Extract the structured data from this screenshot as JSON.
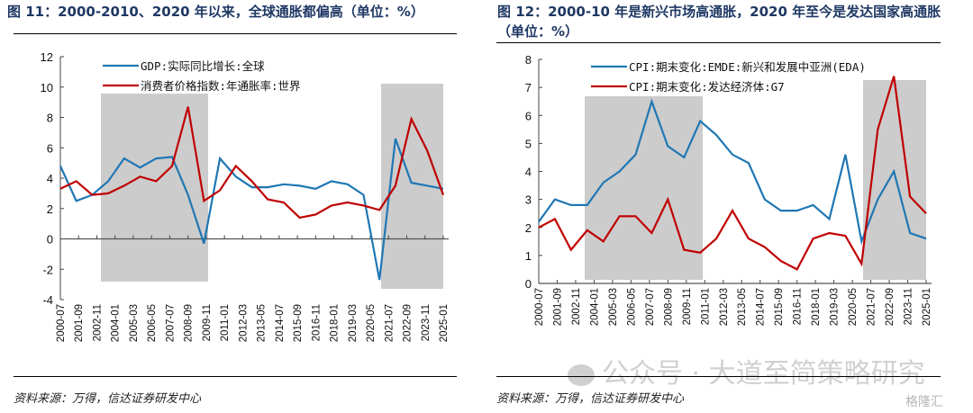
{
  "figure1": {
    "title": "图 11：2000-2010、2020 年以来，全球通胀都偏高（单位：%）",
    "source": "资料来源：万得，信达证券研发中心"
  },
  "figure2": {
    "title": "图  12：2000-10 年是新兴市场高通胀，2020 年至今是发达国家高通胀（单位：%）",
    "source": "资料来源：万得，信达证券研发中心"
  },
  "watermark": {
    "text": "公众号 · 大道至简策略研究",
    "icon": "wechat-icon",
    "logo": "格隆汇"
  },
  "colors": {
    "blue": "#1f77b4",
    "red": "#c00000",
    "shade": "#cccccc"
  },
  "chart_data": [
    {
      "type": "line",
      "title": "图 11：2000-2010、2020 年以来，全球通胀都偏高（单位：%）",
      "xlabel": "",
      "ylabel": "",
      "ylim": [
        -4,
        12
      ],
      "yticks": [
        "12",
        "10",
        "8",
        "6",
        "4",
        "2",
        "0",
        "-2",
        "-4"
      ],
      "ytick_values": [
        12,
        10,
        8,
        6,
        4,
        2,
        0,
        -2,
        -4
      ],
      "xtick_labels": [
        "2000-07",
        "2001-09",
        "2002-11",
        "2004-01",
        "2005-03",
        "2006-05",
        "2007-07",
        "2008-09",
        "2009-11",
        "2011-01",
        "2012-03",
        "2013-05",
        "2014-07",
        "2015-09",
        "2016-11",
        "2018-01",
        "2019-03",
        "2020-05",
        "2021-07",
        "2022-09",
        "2023-11",
        "2025-01"
      ],
      "x": [
        2000,
        2001,
        2002,
        2003,
        2004,
        2005,
        2006,
        2007,
        2008,
        2009,
        2010,
        2011,
        2012,
        2013,
        2014,
        2015,
        2016,
        2017,
        2018,
        2019,
        2020,
        2021,
        2022,
        2023,
        2024
      ],
      "series": [
        {
          "name": "GDP:实际同比增长:全球",
          "color": "#1f77b4",
          "values": [
            4.8,
            2.5,
            2.9,
            3.8,
            5.3,
            4.7,
            5.3,
            5.4,
            2.9,
            -0.3,
            5.3,
            4.1,
            3.4,
            3.4,
            3.6,
            3.5,
            3.3,
            3.8,
            3.6,
            2.9,
            -2.7,
            6.6,
            3.7,
            3.5,
            3.3
          ]
        },
        {
          "name": "消费者价格指数:年通胀率:世界",
          "color": "#c00000",
          "values": [
            3.3,
            3.8,
            2.9,
            3.0,
            3.5,
            4.1,
            3.8,
            4.8,
            8.7,
            2.5,
            3.2,
            4.8,
            3.8,
            2.6,
            2.4,
            1.4,
            1.6,
            2.2,
            2.4,
            2.2,
            1.9,
            3.5,
            7.9,
            5.8,
            2.9
          ]
        }
      ],
      "shaded_periods": [
        [
          "2003-01",
          "2009-12"
        ],
        [
          "2020-07",
          "2025-01"
        ]
      ],
      "legend": "top"
    },
    {
      "type": "line",
      "title": "图  12：2000-10 年是新兴市场高通胀，2020 年至今是发达国家高通胀（单位：%）",
      "xlabel": "",
      "ylabel": "",
      "ylim": [
        0,
        8
      ],
      "yticks": [
        "8",
        "7",
        "6",
        "5",
        "4",
        "3",
        "2",
        "1",
        "0"
      ],
      "ytick_values": [
        8,
        7,
        6,
        5,
        4,
        3,
        2,
        1,
        0
      ],
      "xtick_labels": [
        "2000-07",
        "2001-09",
        "2002-11",
        "2004-01",
        "2005-03",
        "2006-05",
        "2007-07",
        "2008-09",
        "2009-11",
        "2011-01",
        "2012-03",
        "2013-05",
        "2014-07",
        "2015-09",
        "2016-11",
        "2018-01",
        "2019-03",
        "2020-05",
        "2021-07",
        "2022-09",
        "2023-11",
        "2025-01"
      ],
      "x": [
        2000,
        2001,
        2002,
        2003,
        2004,
        2005,
        2006,
        2007,
        2008,
        2009,
        2010,
        2011,
        2012,
        2013,
        2014,
        2015,
        2016,
        2017,
        2018,
        2019,
        2020,
        2021,
        2022,
        2023,
        2024
      ],
      "series": [
        {
          "name": "CPI:期末变化:EMDE:新兴和发展中亚洲(EDA)",
          "color": "#1f77b4",
          "values": [
            2.2,
            3.0,
            2.8,
            2.8,
            3.6,
            4.0,
            4.6,
            6.5,
            4.9,
            4.5,
            5.8,
            5.3,
            4.6,
            4.3,
            3.0,
            2.6,
            2.6,
            2.8,
            2.3,
            4.6,
            1.5,
            3.0,
            4.0,
            1.8,
            1.6
          ]
        },
        {
          "name": "CPI:期末变化:发达经济体:G7",
          "color": "#c00000",
          "values": [
            2.0,
            2.3,
            1.2,
            1.9,
            1.5,
            2.4,
            2.4,
            1.8,
            3.0,
            1.2,
            1.1,
            1.6,
            2.6,
            1.6,
            1.3,
            0.8,
            0.5,
            1.6,
            1.8,
            1.7,
            0.7,
            5.5,
            7.4,
            3.1,
            2.5
          ]
        }
      ],
      "shaded_periods": [
        [
          "2003-01",
          "2010-12"
        ],
        [
          "2020-07",
          "2025-01"
        ]
      ],
      "legend": "top"
    }
  ]
}
